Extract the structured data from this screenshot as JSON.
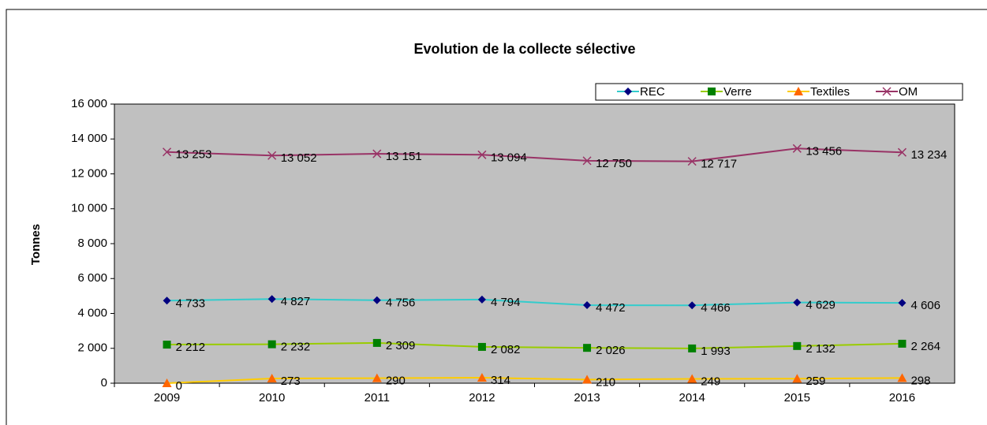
{
  "chart_data": {
    "type": "line",
    "title": "Evolution de la collecte sélective",
    "y_label": "Tonnes",
    "categories": [
      "2009",
      "2010",
      "2011",
      "2012",
      "2013",
      "2014",
      "2015",
      "2016"
    ],
    "ylim": [
      0,
      16000
    ],
    "yticks": [
      0,
      {
        "value": 2000,
        "label": "2 000"
      },
      {
        "value": 4000,
        "label": "4 000"
      },
      {
        "value": 6000,
        "label": "6 000"
      },
      {
        "value": 8000,
        "label": "8 000"
      },
      {
        "value": 10000,
        "label": "10 000"
      },
      {
        "value": 12000,
        "label": "12 000"
      },
      {
        "value": 14000,
        "label": "14 000"
      },
      {
        "value": 16000,
        "label": "16 000"
      }
    ],
    "legend": "top-right",
    "series": [
      {
        "name": "REC",
        "color": "#33CCCC",
        "marker_color": "#000080",
        "marker": "diamond",
        "values": [
          4733,
          4827,
          4756,
          4794,
          4472,
          4466,
          4629,
          4606
        ],
        "value_labels": [
          "4 733",
          "4 827",
          "4 756",
          "4 794",
          "4 472",
          "4 466",
          "4 629",
          "4 606"
        ]
      },
      {
        "name": "Verre",
        "color": "#99CC00",
        "marker_color": "#008000",
        "marker": "square",
        "values": [
          2212,
          2232,
          2309,
          2082,
          2026,
          1993,
          2132,
          2264
        ],
        "value_labels": [
          "2 212",
          "2 232",
          "2 309",
          "2 082",
          "2 026",
          "1 993",
          "2 132",
          "2 264"
        ]
      },
      {
        "name": "Textiles",
        "color": "#FFCC00",
        "marker_color": "#FF6600",
        "marker": "triangle",
        "values": [
          0,
          273,
          290,
          314,
          210,
          249,
          259,
          298
        ],
        "value_labels": [
          "0",
          "273",
          "290",
          "314",
          "210",
          "249",
          "259",
          "298"
        ]
      },
      {
        "name": "OM",
        "color": "#993366",
        "marker_color": "#993366",
        "marker": "x",
        "values": [
          13253,
          13052,
          13151,
          13094,
          12750,
          12717,
          13456,
          13234
        ],
        "value_labels": [
          "13 253",
          "13 052",
          "13 151",
          "13 094",
          "12 750",
          "12 717",
          "13 456",
          "13 234"
        ]
      }
    ]
  }
}
